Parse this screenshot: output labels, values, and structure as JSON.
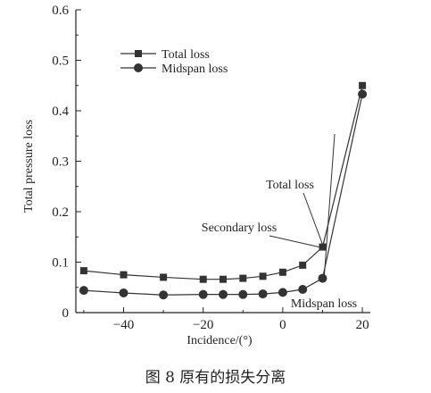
{
  "chart_data": {
    "type": "line",
    "xlabel": "Incidence/(°)",
    "ylabel": "Total pressure loss",
    "xlim": [
      -52,
      22
    ],
    "ylim": [
      0,
      0.6
    ],
    "xticks": [
      -40,
      -20,
      0,
      20
    ],
    "yticks": [
      0,
      0.1,
      0.2,
      0.3,
      0.4,
      0.5,
      0.6
    ],
    "x_tick_labels": [
      "−40",
      "−20",
      "0",
      "20"
    ],
    "y_tick_labels": [
      "0",
      "0.1",
      "0.2",
      "0.3",
      "0.4",
      "0.5",
      "0.6"
    ],
    "legend_position": "top-left",
    "series": [
      {
        "name": "Total loss",
        "marker": "square",
        "x": [
          -50,
          -40,
          -30,
          -20,
          -15,
          -10,
          -5,
          0,
          5,
          10,
          20
        ],
        "y": [
          0.083,
          0.075,
          0.07,
          0.066,
          0.066,
          0.068,
          0.072,
          0.08,
          0.094,
          0.13,
          0.45
        ]
      },
      {
        "name": "Midspan loss",
        "marker": "circle",
        "x": [
          -50,
          -40,
          -30,
          -20,
          -15,
          -10,
          -5,
          0,
          5,
          10,
          20
        ],
        "y": [
          0.044,
          0.039,
          0.035,
          0.036,
          0.036,
          0.036,
          0.037,
          0.04,
          0.046,
          0.068,
          0.433
        ]
      }
    ],
    "annotations": [
      {
        "text": "Total loss",
        "target_series": "Total loss"
      },
      {
        "text": "Secondary loss",
        "target_series": "Total loss"
      },
      {
        "text": "Midspan loss",
        "target_series": "Midspan loss"
      }
    ]
  },
  "caption": "图 8   原有的损失分离"
}
